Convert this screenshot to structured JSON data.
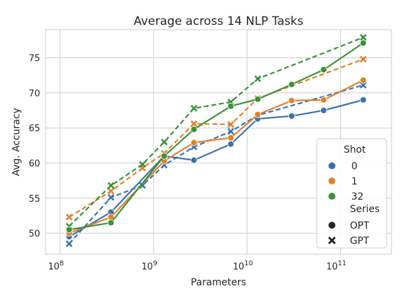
{
  "chart_data": {
    "type": "line",
    "title": "Average across 14 NLP Tasks",
    "xlabel": "Parameters",
    "ylabel": "Avg. Accuracy",
    "xscale": "log",
    "xlim": [
      70000000,
      350000000000
    ],
    "ylim": [
      47.0,
      79.0
    ],
    "xticks": [
      {
        "value": 100000000,
        "base": "10",
        "exp": "8"
      },
      {
        "value": 1000000000,
        "base": "10",
        "exp": "9"
      },
      {
        "value": 10000000000,
        "base": "10",
        "exp": "10"
      },
      {
        "value": 100000000000,
        "base": "10",
        "exp": "11"
      }
    ],
    "yticks": [
      50,
      55,
      60,
      65,
      70,
      75
    ],
    "grid": true,
    "legend": {
      "placement": "lower-right",
      "shot_title": "Shot",
      "series_title": "Series",
      "shot_entries": [
        {
          "label": "0",
          "color": "#3a72ad"
        },
        {
          "label": "1",
          "color": "#e1812c"
        },
        {
          "label": "32",
          "color": "#3a923a"
        }
      ],
      "series_entries": [
        {
          "label": "OPT",
          "marker": "circle"
        },
        {
          "label": "GPT",
          "marker": "x"
        }
      ]
    },
    "series": [
      {
        "shot": "0",
        "family": "OPT",
        "color": "#3a72ad",
        "dash": false,
        "marker": "circle",
        "x": [
          125000000,
          350000000,
          1300000000,
          2700000000,
          6700000000,
          13000000000,
          30000000000,
          66000000000,
          175000000000
        ],
        "y": [
          49.5,
          53.0,
          61.0,
          60.4,
          62.7,
          66.3,
          66.7,
          67.5,
          69.0
        ]
      },
      {
        "shot": "0",
        "family": "GPT",
        "color": "#3a72ad",
        "dash": true,
        "marker": "x",
        "x": [
          125000000,
          350000000,
          760000000,
          1300000000,
          2700000000,
          6700000000,
          13000000000,
          175000000000
        ],
        "y": [
          48.5,
          55.1,
          56.8,
          59.7,
          62.3,
          64.5,
          66.8,
          71.1
        ]
      },
      {
        "shot": "1",
        "family": "OPT",
        "color": "#e1812c",
        "dash": false,
        "marker": "circle",
        "x": [
          125000000,
          350000000,
          1300000000,
          2700000000,
          6700000000,
          13000000000,
          30000000000,
          66000000000,
          175000000000
        ],
        "y": [
          50.0,
          52.3,
          60.3,
          62.9,
          63.6,
          66.9,
          68.9,
          69.0,
          71.8
        ]
      },
      {
        "shot": "1",
        "family": "GPT",
        "color": "#e1812c",
        "dash": true,
        "marker": "x",
        "x": [
          125000000,
          350000000,
          760000000,
          1300000000,
          2700000000,
          6700000000,
          13000000000,
          175000000000
        ],
        "y": [
          52.3,
          56.0,
          59.3,
          61.4,
          65.6,
          65.5,
          69.2,
          74.8
        ]
      },
      {
        "shot": "32",
        "family": "OPT",
        "color": "#3a923a",
        "dash": false,
        "marker": "circle",
        "x": [
          125000000,
          350000000,
          1300000000,
          2700000000,
          6700000000,
          13000000000,
          30000000000,
          66000000000,
          175000000000
        ],
        "y": [
          50.5,
          51.5,
          61.0,
          64.8,
          68.1,
          69.1,
          71.2,
          73.3,
          77.1
        ]
      },
      {
        "shot": "32",
        "family": "GPT",
        "color": "#3a923a",
        "dash": true,
        "marker": "x",
        "x": [
          125000000,
          350000000,
          760000000,
          1300000000,
          2700000000,
          6700000000,
          13000000000,
          175000000000
        ],
        "y": [
          51.0,
          56.8,
          59.8,
          63.0,
          67.8,
          68.7,
          72.0,
          77.9
        ]
      }
    ]
  }
}
